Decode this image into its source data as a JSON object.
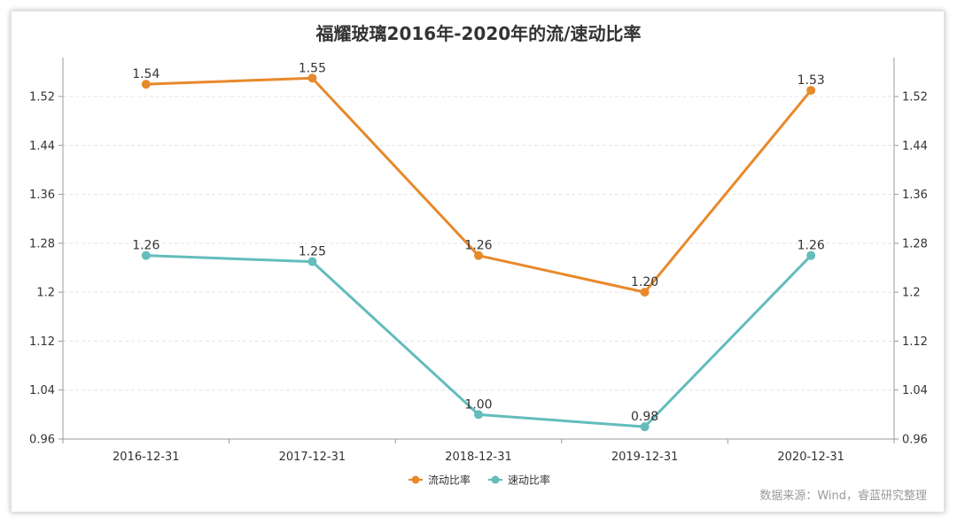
{
  "chart_data": {
    "type": "line",
    "title": "福耀玻璃2016年-2020年的流/速动比率",
    "categories": [
      "2016-12-31",
      "2017-12-31",
      "2018-12-31",
      "2019-12-31",
      "2020-12-31"
    ],
    "series": [
      {
        "name": "流动比率",
        "color": "#e8892b",
        "values": [
          1.54,
          1.55,
          1.26,
          1.2,
          1.53
        ],
        "labels": [
          "1.54",
          "1.55",
          "1.26",
          "1.20",
          "1.53"
        ]
      },
      {
        "name": "速动比率",
        "color": "#64bcbc",
        "values": [
          1.26,
          1.25,
          1.0,
          0.98,
          1.26
        ],
        "labels": [
          "1.26",
          "1.25",
          "1.00",
          "0.98",
          "1.26"
        ]
      }
    ],
    "yticks": [
      "0.96",
      "1.04",
      "1.12",
      "1.2",
      "1.28",
      "1.36",
      "1.44",
      "1.52"
    ],
    "ylim": [
      0.96,
      1.56
    ],
    "xlabel": "",
    "ylabel": "",
    "legend": "bottom-center",
    "grid": true
  },
  "footer": {
    "source": "数据来源：Wind，睿蓝研究整理"
  },
  "colors": {
    "axis": "#999999",
    "grid": "#e4e4e4",
    "tick_text": "#333333"
  }
}
